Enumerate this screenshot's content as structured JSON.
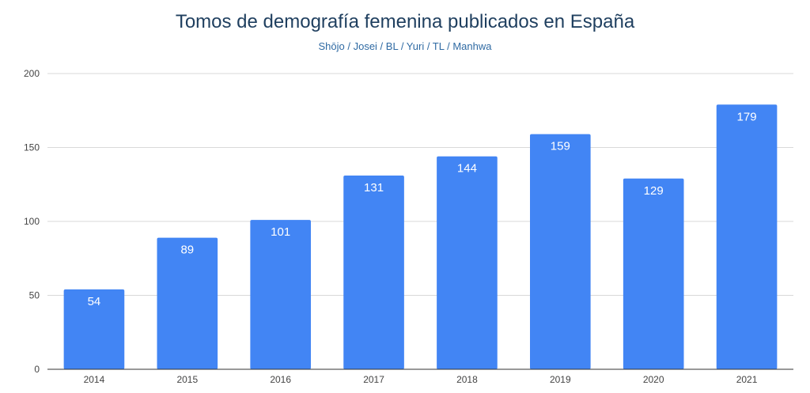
{
  "chart_data": {
    "type": "bar",
    "title": "Tomos de demografía femenina publicados en España",
    "subtitle": "Shōjo / Josei / BL / Yuri / TL / Manhwa",
    "xlabel": "",
    "ylabel": "",
    "categories": [
      "2014",
      "2015",
      "2016",
      "2017",
      "2018",
      "2019",
      "2020",
      "2021"
    ],
    "values": [
      54,
      89,
      101,
      131,
      144,
      159,
      129,
      179
    ],
    "ylim": [
      0,
      200
    ],
    "yticks": [
      "0",
      "50",
      "100",
      "150",
      "200"
    ],
    "grid": true,
    "legend": "none",
    "bar_color": "#4285f4",
    "title_color": "#1f3f5f",
    "subtitle_color": "#2f6aa3"
  }
}
